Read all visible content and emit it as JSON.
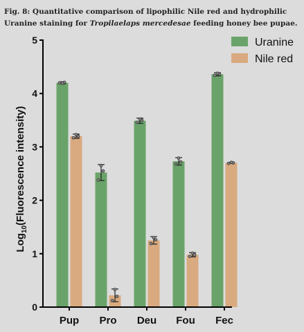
{
  "caption": {
    "prefix": "Fig. 8: Quantitative comparison of lipophilic Nile red and hydrophilic Uranine staining for ",
    "species": "Tropilaelaps mercedesae",
    "suffix": " feeding honey bee pupae."
  },
  "chart_data": {
    "type": "bar",
    "title": "",
    "xlabel": "",
    "ylabel": {
      "prefix": "Log",
      "subscript": "10",
      "suffix": "(Fluorescence intensity)"
    },
    "ylim": [
      0,
      5
    ],
    "yticks": [
      "0",
      "1",
      "2",
      "3",
      "4",
      "5"
    ],
    "categories": [
      "Pup",
      "Pro",
      "Deu",
      "Fou",
      "Fec"
    ],
    "legend_position": "top-right",
    "grid": false,
    "series": [
      {
        "name": "Uranine",
        "color": "#6aa36a",
        "values": [
          4.2,
          2.52,
          3.49,
          2.73,
          4.36
        ],
        "errors": [
          0.02,
          0.15,
          0.05,
          0.07,
          0.03
        ],
        "points": [
          [
            4.2,
            4.21,
            4.19
          ],
          [
            2.38,
            2.55,
            2.65
          ],
          [
            3.46,
            3.5,
            3.52
          ],
          [
            2.68,
            2.72,
            2.79
          ],
          [
            4.34,
            4.36,
            4.38
          ]
        ]
      },
      {
        "name": "Nile red",
        "color": "#d9aa7f",
        "values": [
          3.2,
          0.22,
          1.25,
          0.98,
          2.7
        ],
        "errors": [
          0.04,
          0.12,
          0.07,
          0.04,
          0.01
        ],
        "points": [
          [
            3.17,
            3.2,
            3.23
          ],
          [
            0.12,
            0.2,
            0.33
          ],
          [
            1.19,
            1.26,
            1.3
          ],
          [
            0.95,
            0.98,
            1.01
          ],
          [
            2.69,
            2.7,
            2.71
          ]
        ]
      }
    ]
  }
}
